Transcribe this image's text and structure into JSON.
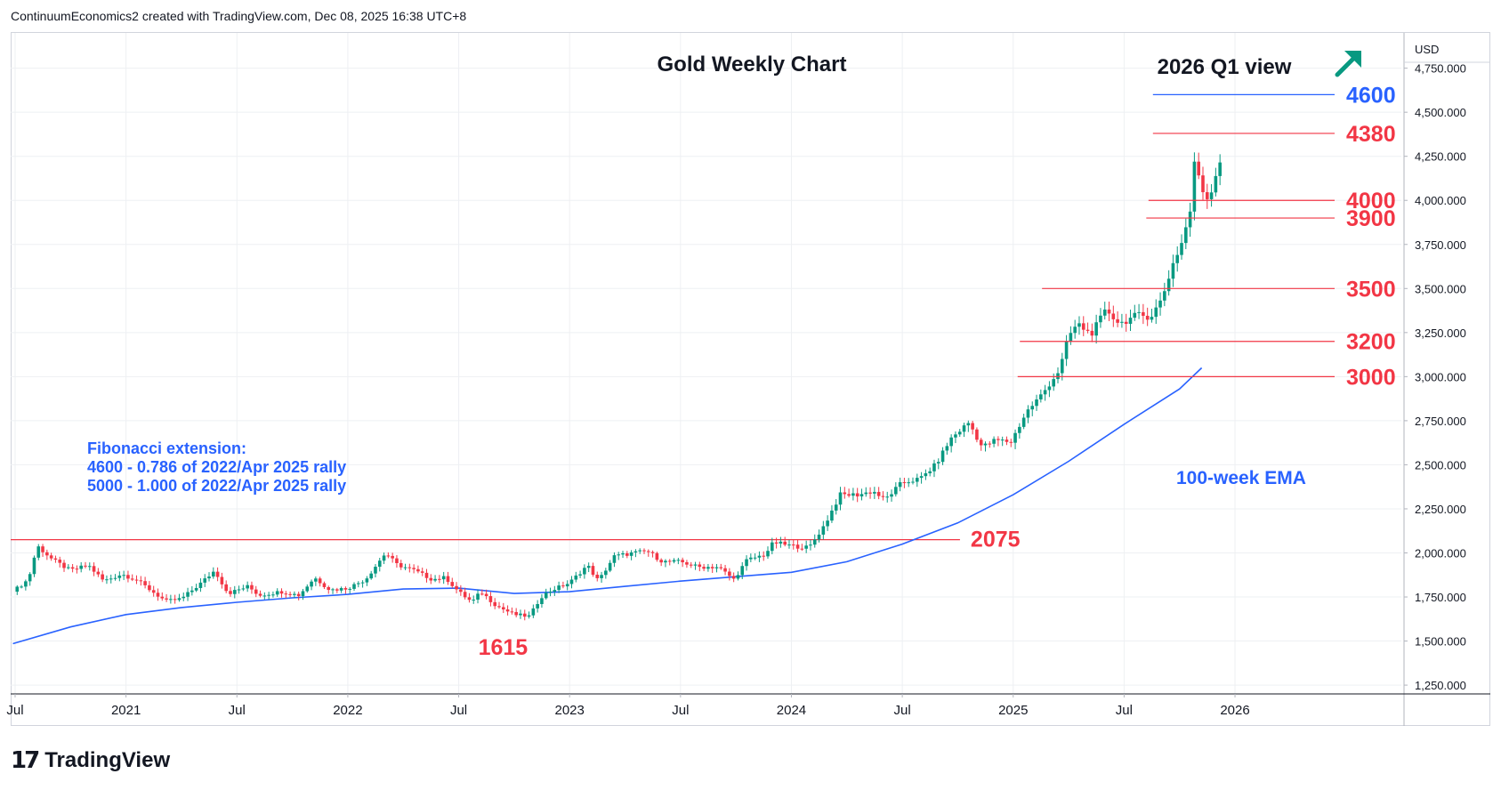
{
  "header": {
    "credit": "ContinuumEconomics2 created with TradingView.com, Dec 08, 2025 16:38 UTC+8"
  },
  "branding": {
    "logo_mark": "17",
    "logo_text": "TradingView"
  },
  "colors": {
    "up": "#089981",
    "down": "#f23645",
    "ema": "#2962ff",
    "res_line": "#f23645",
    "target_line": "#2962ff",
    "grid": "#eef0f3",
    "axis_text": "#131722",
    "note": "#2962ff",
    "arrow": "#089981"
  },
  "chart_data": {
    "type": "candlestick",
    "title": "Gold Weekly Chart",
    "subtitle": "2026 Q1 view",
    "outlook_icon": "arrow-up-right-icon",
    "currency": "USD",
    "ylim": [
      1200,
      4950
    ],
    "y_ticks": [
      1250,
      1500,
      1750,
      2000,
      2250,
      2500,
      2750,
      3000,
      3250,
      3500,
      3750,
      4000,
      4250,
      4500,
      4750
    ],
    "y_tick_labels": [
      "1,250.000",
      "1,500.000",
      "1,750.000",
      "2,000.000",
      "2,250.000",
      "2,500.000",
      "2,750.000",
      "3,000.000",
      "3,250.000",
      "3,500.000",
      "3,750.000",
      "4,000.000",
      "4,250.000",
      "4,500.000",
      "4,750.000"
    ],
    "x_range": [
      2020.48,
      2026.75
    ],
    "x_ticks": [
      2020.5,
      2021.0,
      2021.5,
      2022.0,
      2022.5,
      2023.0,
      2023.5,
      2024.0,
      2024.5,
      2025.0,
      2025.5,
      2026.0
    ],
    "x_tick_labels": [
      "Jul",
      "2021",
      "Jul",
      "2022",
      "Jul",
      "2023",
      "Jul",
      "2024",
      "Jul",
      "2025",
      "Jul",
      "2026"
    ],
    "price_path": [
      [
        2020.49,
        1780
      ],
      [
        2020.56,
        1850
      ],
      [
        2020.6,
        2040
      ],
      [
        2020.67,
        1960
      ],
      [
        2020.75,
        1900
      ],
      [
        2020.83,
        1930
      ],
      [
        2020.9,
        1840
      ],
      [
        2020.98,
        1880
      ],
      [
        2021.05,
        1845
      ],
      [
        2021.12,
        1780
      ],
      [
        2021.18,
        1725
      ],
      [
        2021.25,
        1740
      ],
      [
        2021.33,
        1820
      ],
      [
        2021.4,
        1900
      ],
      [
        2021.46,
        1770
      ],
      [
        2021.55,
        1810
      ],
      [
        2021.6,
        1760
      ],
      [
        2021.7,
        1780
      ],
      [
        2021.78,
        1760
      ],
      [
        2021.85,
        1860
      ],
      [
        2021.92,
        1790
      ],
      [
        2022.0,
        1800
      ],
      [
        2022.08,
        1850
      ],
      [
        2022.17,
        2000
      ],
      [
        2022.22,
        1935
      ],
      [
        2022.3,
        1900
      ],
      [
        2022.38,
        1850
      ],
      [
        2022.44,
        1860
      ],
      [
        2022.5,
        1780
      ],
      [
        2022.56,
        1720
      ],
      [
        2022.6,
        1780
      ],
      [
        2022.67,
        1700
      ],
      [
        2022.75,
        1650
      ],
      [
        2022.82,
        1640
      ],
      [
        2022.87,
        1750
      ],
      [
        2022.92,
        1790
      ],
      [
        2023.0,
        1830
      ],
      [
        2023.08,
        1930
      ],
      [
        2023.13,
        1840
      ],
      [
        2023.2,
        1980
      ],
      [
        2023.29,
        2000
      ],
      [
        2023.35,
        2010
      ],
      [
        2023.42,
        1950
      ],
      [
        2023.5,
        1950
      ],
      [
        2023.58,
        1920
      ],
      [
        2023.67,
        1920
      ],
      [
        2023.74,
        1850
      ],
      [
        2023.8,
        1960
      ],
      [
        2023.88,
        1990
      ],
      [
        2023.92,
        2060
      ],
      [
        2024.0,
        2040
      ],
      [
        2024.08,
        2030
      ],
      [
        2024.15,
        2160
      ],
      [
        2024.22,
        2330
      ],
      [
        2024.3,
        2330
      ],
      [
        2024.37,
        2350
      ],
      [
        2024.42,
        2300
      ],
      [
        2024.5,
        2400
      ],
      [
        2024.58,
        2420
      ],
      [
        2024.65,
        2500
      ],
      [
        2024.72,
        2650
      ],
      [
        2024.8,
        2740
      ],
      [
        2024.86,
        2600
      ],
      [
        2024.92,
        2640
      ],
      [
        2024.99,
        2630
      ],
      [
        2025.06,
        2800
      ],
      [
        2025.13,
        2900
      ],
      [
        2025.21,
        3040
      ],
      [
        2025.25,
        3230
      ],
      [
        2025.29,
        3300
      ],
      [
        2025.35,
        3240
      ],
      [
        2025.42,
        3380
      ],
      [
        2025.48,
        3300
      ],
      [
        2025.56,
        3350
      ],
      [
        2025.62,
        3340
      ],
      [
        2025.67,
        3440
      ],
      [
        2025.72,
        3640
      ],
      [
        2025.76,
        3760
      ],
      [
        2025.8,
        3950
      ],
      [
        2025.82,
        4250
      ],
      [
        2025.84,
        4120
      ],
      [
        2025.87,
        4000
      ],
      [
        2025.9,
        4080
      ],
      [
        2025.93,
        4230
      ],
      [
        2025.95,
        4200
      ]
    ],
    "ema_100w": [
      [
        2020.49,
        1485
      ],
      [
        2020.75,
        1580
      ],
      [
        2021.0,
        1650
      ],
      [
        2021.25,
        1690
      ],
      [
        2021.5,
        1720
      ],
      [
        2021.75,
        1745
      ],
      [
        2022.0,
        1765
      ],
      [
        2022.25,
        1795
      ],
      [
        2022.5,
        1800
      ],
      [
        2022.75,
        1770
      ],
      [
        2023.0,
        1780
      ],
      [
        2023.25,
        1810
      ],
      [
        2023.5,
        1840
      ],
      [
        2023.75,
        1865
      ],
      [
        2024.0,
        1890
      ],
      [
        2024.25,
        1950
      ],
      [
        2024.5,
        2050
      ],
      [
        2024.75,
        2170
      ],
      [
        2025.0,
        2330
      ],
      [
        2025.25,
        2520
      ],
      [
        2025.5,
        2730
      ],
      [
        2025.75,
        2930
      ],
      [
        2025.85,
        3050
      ]
    ],
    "resistance_levels": [
      {
        "value": 4380,
        "label": "4380",
        "x_start": 2025.63
      },
      {
        "value": 4000,
        "label": "4000",
        "x_start": 2025.61
      },
      {
        "value": 3900,
        "label": "3900",
        "x_start": 2025.6
      },
      {
        "value": 3500,
        "label": "3500",
        "x_start": 2025.13
      },
      {
        "value": 3200,
        "label": "3200",
        "x_start": 2025.03
      },
      {
        "value": 3000,
        "label": "3000",
        "x_start": 2025.02
      }
    ],
    "target_levels": [
      {
        "value": 4600,
        "label": "4600",
        "x_start": 2025.63
      }
    ],
    "long_lines": [
      {
        "value": 2075,
        "label": "2075",
        "x_start": 2020.48,
        "x_end": 2024.76
      }
    ],
    "support_labels": [
      {
        "value": 1615,
        "label": "1615",
        "x": 2022.7
      }
    ],
    "ema_label": "100-week EMA",
    "annotations": [
      "Fibonacci extension:",
      "4600 - 0.786 of 2022/Apr 2025 rally",
      "5000 - 1.000 of 2022/Apr 2025 rally"
    ]
  }
}
